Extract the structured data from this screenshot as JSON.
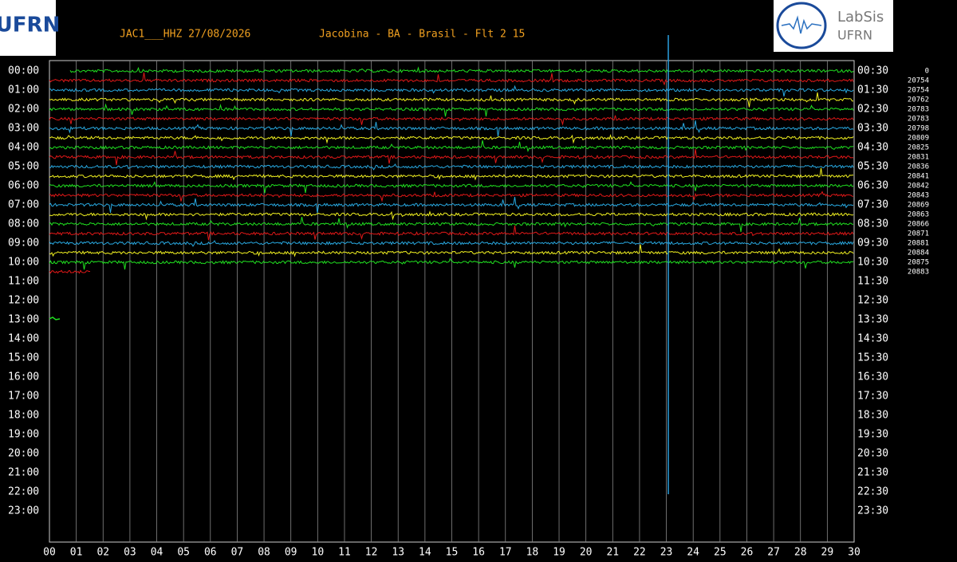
{
  "header": {
    "station": "JAC1___HHZ 27/08/2026",
    "location": "Jacobina - BA - Brasil - Flt 2 15"
  },
  "logos": {
    "left": "UFRN",
    "right_top": "LabSis",
    "right_bottom": "UFRN"
  },
  "left_labels": [
    "00:00",
    "01:00",
    "02:00",
    "03:00",
    "04:00",
    "05:00",
    "06:00",
    "07:00",
    "08:00",
    "09:00",
    "10:00",
    "11:00",
    "12:00",
    "13:00",
    "14:00",
    "15:00",
    "16:00",
    "17:00",
    "18:00",
    "19:00",
    "20:00",
    "21:00",
    "22:00",
    "23:00"
  ],
  "right_labels": [
    "00:30",
    "01:30",
    "02:30",
    "03:30",
    "04:30",
    "05:30",
    "06:30",
    "07:30",
    "08:30",
    "09:30",
    "10:30",
    "11:30",
    "12:30",
    "13:30",
    "14:30",
    "15:30",
    "16:30",
    "17:30",
    "18:30",
    "19:30",
    "20:30",
    "21:30",
    "22:30",
    "23:30"
  ],
  "counts": [
    "0",
    "20754",
    "20754",
    "20762",
    "20783",
    "20783",
    "20798",
    "20809",
    "20825",
    "20831",
    "20836",
    "20841",
    "20842",
    "20843",
    "20869",
    "20863",
    "20866",
    "20871",
    "20881",
    "20884",
    "20875",
    "20883"
  ],
  "x_labels": [
    "00",
    "01",
    "02",
    "03",
    "04",
    "05",
    "06",
    "07",
    "08",
    "09",
    "10",
    "11",
    "12",
    "13",
    "14",
    "15",
    "16",
    "17",
    "18",
    "19",
    "20",
    "21",
    "22",
    "23",
    "24",
    "25",
    "26",
    "27",
    "28",
    "29",
    "30"
  ]
}
